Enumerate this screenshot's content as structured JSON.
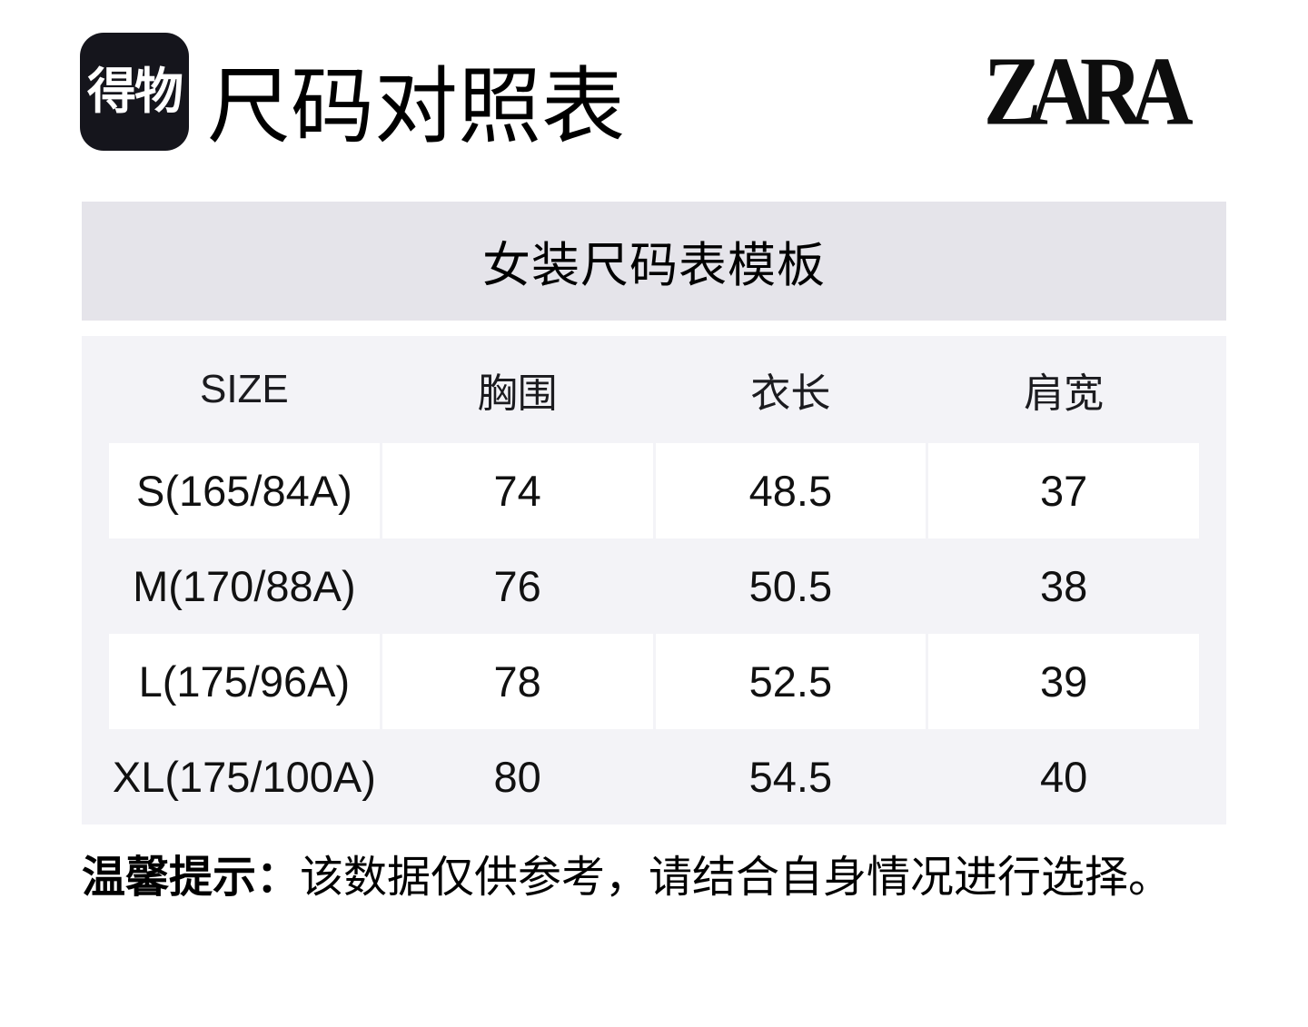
{
  "header": {
    "app_logo_text": "得物",
    "page_title": "尺码对照表",
    "brand_logo": "ZARA"
  },
  "banner": {
    "title": "女装尺码表模板"
  },
  "size_table": {
    "columns": [
      "SIZE",
      "胸围",
      "衣长",
      "肩宽"
    ],
    "rows": [
      {
        "size": "S(165/84A)",
        "chest": "74",
        "length": "48.5",
        "shoulder": "37"
      },
      {
        "size": "M(170/88A)",
        "chest": "76",
        "length": "50.5",
        "shoulder": "38"
      },
      {
        "size": "L(175/96A)",
        "chest": "78",
        "length": "52.5",
        "shoulder": "39"
      },
      {
        "size": "XL(175/100A)",
        "chest": "80",
        "length": "54.5",
        "shoulder": "40"
      }
    ]
  },
  "footer": {
    "note_label": "温馨提示：",
    "note_text": "该数据仅供参考，请结合自身情况进行选择。"
  },
  "colors": {
    "logo_bg": "#15151c",
    "banner_bg": "#e5e4ea",
    "table_bg": "#f3f3f7",
    "cell_bg": "#ffffff",
    "text": "#111111"
  }
}
